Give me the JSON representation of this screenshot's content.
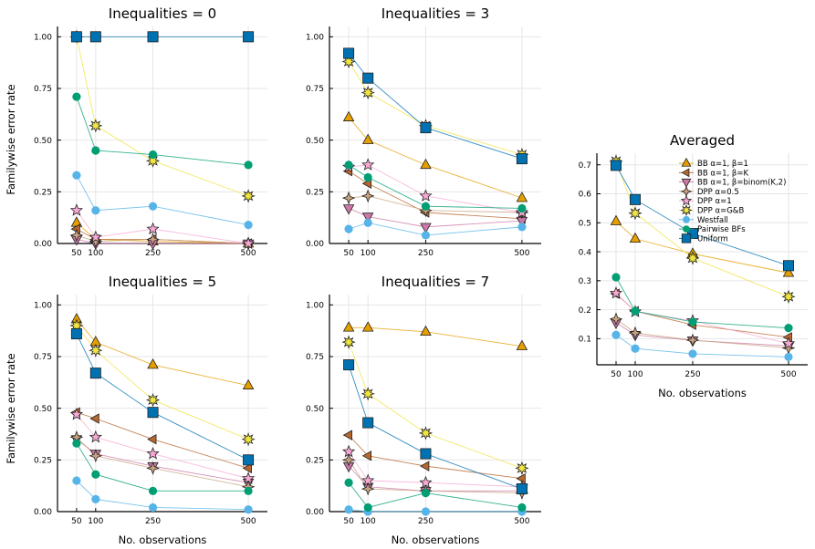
{
  "figure": {
    "y_axis_label": "Familywise error rate",
    "x_axis_label": "No. observations"
  },
  "series_styles": [
    {
      "name": "BB α=1, β=1",
      "color": "#e69f00",
      "marker": "triangle-up"
    },
    {
      "name": "BB α=1, β=K",
      "color": "#b6672f",
      "marker": "triangle-left"
    },
    {
      "name": "BB α=1, β=binom(K,2)",
      "color": "#cc79a7",
      "marker": "triangle-down"
    },
    {
      "name": "DPP α=0.5",
      "color": "#c9a27e",
      "marker": "star4"
    },
    {
      "name": "DPP α=1",
      "color": "#f7a8d3",
      "marker": "star5"
    },
    {
      "name": "DPP α=G&B",
      "color": "#f0e442",
      "marker": "star8"
    },
    {
      "name": "Westfall",
      "color": "#56b4e9",
      "marker": "circle"
    },
    {
      "name": "Pairwise BFs",
      "color": "#009e73",
      "marker": "circle"
    },
    {
      "name": "Uniform",
      "color": "#0072b2",
      "marker": "square"
    }
  ],
  "chart_data": [
    {
      "type": "line",
      "title": "Inequalities = 0",
      "xlabel": "",
      "ylabel": "Familywise error rate",
      "x": [
        50,
        100,
        250,
        500
      ],
      "xticks": [
        "50",
        "100",
        "250",
        "500"
      ],
      "xlim": [
        0,
        550
      ],
      "ylim": [
        0,
        1.05
      ],
      "yticks": [
        "0.00",
        "0.25",
        "0.50",
        "0.75",
        "1.00"
      ],
      "grid": true,
      "series": [
        {
          "name": "BB α=1, β=1",
          "values": [
            0.1,
            0.02,
            0.01,
            0.0
          ]
        },
        {
          "name": "BB α=1, β=K",
          "values": [
            0.07,
            0.02,
            0.02,
            0.0
          ]
        },
        {
          "name": "BB α=1, β=binom(K,2)",
          "values": [
            0.02,
            0.0,
            0.0,
            0.0
          ]
        },
        {
          "name": "DPP α=0.5",
          "values": [
            0.04,
            0.01,
            0.02,
            0.0
          ]
        },
        {
          "name": "DPP α=1",
          "values": [
            0.16,
            0.03,
            0.07,
            0.0
          ]
        },
        {
          "name": "DPP α=G&B",
          "values": [
            1.0,
            0.57,
            0.4,
            0.23
          ]
        },
        {
          "name": "Westfall",
          "values": [
            0.33,
            0.16,
            0.18,
            0.09
          ]
        },
        {
          "name": "Pairwise BFs",
          "values": [
            0.71,
            0.45,
            0.43,
            0.38
          ]
        },
        {
          "name": "Uniform",
          "values": [
            1.0,
            1.0,
            1.0,
            1.0
          ]
        }
      ]
    },
    {
      "type": "line",
      "title": "Inequalities = 3",
      "xlabel": "",
      "ylabel": "",
      "x": [
        50,
        100,
        250,
        500
      ],
      "xticks": [
        "50",
        "100",
        "250",
        "500"
      ],
      "xlim": [
        0,
        550
      ],
      "ylim": [
        0,
        1.05
      ],
      "yticks": [
        "0.00",
        "0.25",
        "0.50",
        "0.75",
        "1.00"
      ],
      "grid": true,
      "series": [
        {
          "name": "BB α=1, β=1",
          "values": [
            0.61,
            0.5,
            0.38,
            0.22
          ]
        },
        {
          "name": "BB α=1, β=K",
          "values": [
            0.35,
            0.29,
            0.15,
            0.12
          ]
        },
        {
          "name": "BB α=1, β=binom(K,2)",
          "values": [
            0.17,
            0.13,
            0.08,
            0.11
          ]
        },
        {
          "name": "DPP α=0.5",
          "values": [
            0.22,
            0.23,
            0.16,
            0.15
          ]
        },
        {
          "name": "DPP α=1",
          "values": [
            0.37,
            0.38,
            0.23,
            0.15
          ]
        },
        {
          "name": "DPP α=G&B",
          "values": [
            0.88,
            0.73,
            0.57,
            0.43
          ]
        },
        {
          "name": "Westfall",
          "values": [
            0.07,
            0.1,
            0.04,
            0.08
          ]
        },
        {
          "name": "Pairwise BFs",
          "values": [
            0.38,
            0.32,
            0.18,
            0.17
          ]
        },
        {
          "name": "Uniform",
          "values": [
            0.92,
            0.8,
            0.56,
            0.41
          ]
        }
      ]
    },
    {
      "type": "line",
      "title": "Inequalities = 5",
      "xlabel": "No. observations",
      "ylabel": "Familywise error rate",
      "x": [
        50,
        100,
        250,
        500
      ],
      "xticks": [
        "50",
        "100",
        "250",
        "500"
      ],
      "xlim": [
        0,
        550
      ],
      "ylim": [
        0,
        1.05
      ],
      "yticks": [
        "0.00",
        "0.25",
        "0.50",
        "0.75",
        "1.00"
      ],
      "grid": true,
      "series": [
        {
          "name": "BB α=1, β=1",
          "values": [
            0.93,
            0.82,
            0.71,
            0.61
          ]
        },
        {
          "name": "BB α=1, β=K",
          "values": [
            0.48,
            0.45,
            0.35,
            0.21
          ]
        },
        {
          "name": "BB α=1, β=binom(K,2)",
          "values": [
            0.35,
            0.28,
            0.22,
            0.14
          ]
        },
        {
          "name": "DPP α=0.5",
          "values": [
            0.36,
            0.27,
            0.21,
            0.12
          ]
        },
        {
          "name": "DPP α=1",
          "values": [
            0.47,
            0.36,
            0.28,
            0.16
          ]
        },
        {
          "name": "DPP α=G&B",
          "values": [
            0.9,
            0.78,
            0.54,
            0.35
          ]
        },
        {
          "name": "Westfall",
          "values": [
            0.15,
            0.06,
            0.02,
            0.01
          ]
        },
        {
          "name": "Pairwise BFs",
          "values": [
            0.33,
            0.18,
            0.1,
            0.1
          ]
        },
        {
          "name": "Uniform",
          "values": [
            0.86,
            0.67,
            0.48,
            0.25
          ]
        }
      ]
    },
    {
      "type": "line",
      "title": "Inequalities = 7",
      "xlabel": "No. observations",
      "ylabel": "",
      "x": [
        50,
        100,
        250,
        500
      ],
      "xticks": [
        "50",
        "100",
        "250",
        "500"
      ],
      "xlim": [
        0,
        550
      ],
      "ylim": [
        0,
        1.05
      ],
      "yticks": [
        "0.00",
        "0.25",
        "0.50",
        "0.75",
        "1.00"
      ],
      "grid": true,
      "series": [
        {
          "name": "BB α=1, β=1",
          "values": [
            0.89,
            0.89,
            0.87,
            0.8
          ]
        },
        {
          "name": "BB α=1, β=K",
          "values": [
            0.37,
            0.27,
            0.22,
            0.16
          ]
        },
        {
          "name": "BB α=1, β=binom(K,2)",
          "values": [
            0.22,
            0.12,
            0.1,
            0.1
          ]
        },
        {
          "name": "DPP α=0.5",
          "values": [
            0.25,
            0.11,
            0.1,
            0.09
          ]
        },
        {
          "name": "DPP α=1",
          "values": [
            0.29,
            0.15,
            0.14,
            0.12
          ]
        },
        {
          "name": "DPP α=G&B",
          "values": [
            0.82,
            0.57,
            0.38,
            0.21
          ]
        },
        {
          "name": "Westfall",
          "values": [
            0.01,
            0.0,
            0.0,
            0.0
          ]
        },
        {
          "name": "Pairwise BFs",
          "values": [
            0.14,
            0.02,
            0.09,
            0.02
          ]
        },
        {
          "name": "Uniform",
          "values": [
            0.71,
            0.43,
            0.28,
            0.11
          ]
        }
      ]
    },
    {
      "type": "line",
      "title": "Averaged",
      "xlabel": "No. observations",
      "ylabel": "",
      "x": [
        50,
        100,
        250,
        500
      ],
      "xticks": [
        "50",
        "100",
        "250",
        "500"
      ],
      "xlim": [
        0,
        550
      ],
      "ylim": [
        0.01,
        0.74
      ],
      "yticks": [
        "0.1",
        "0.2",
        "0.3",
        "0.4",
        "0.5",
        "0.6",
        "0.7"
      ],
      "grid": true,
      "legend_position": "top-right",
      "series": [
        {
          "name": "BB α=1, β=1",
          "values": [
            0.505,
            0.445,
            0.393,
            0.327
          ]
        },
        {
          "name": "BB α=1, β=K",
          "values": [
            0.255,
            0.195,
            0.148,
            0.105
          ]
        },
        {
          "name": "BB α=1, β=binom(K,2)",
          "values": [
            0.155,
            0.113,
            0.094,
            0.075
          ]
        },
        {
          "name": "DPP α=0.5",
          "values": [
            0.168,
            0.12,
            0.095,
            0.068
          ]
        },
        {
          "name": "DPP α=1",
          "values": [
            0.257,
            0.193,
            0.162,
            0.083
          ]
        },
        {
          "name": "DPP α=G&B",
          "values": [
            0.712,
            0.533,
            0.378,
            0.245
          ]
        },
        {
          "name": "Westfall",
          "values": [
            0.113,
            0.066,
            0.048,
            0.037
          ]
        },
        {
          "name": "Pairwise BFs",
          "values": [
            0.312,
            0.195,
            0.158,
            0.137
          ]
        },
        {
          "name": "Uniform",
          "values": [
            0.698,
            0.58,
            0.463,
            0.352
          ]
        }
      ]
    }
  ]
}
